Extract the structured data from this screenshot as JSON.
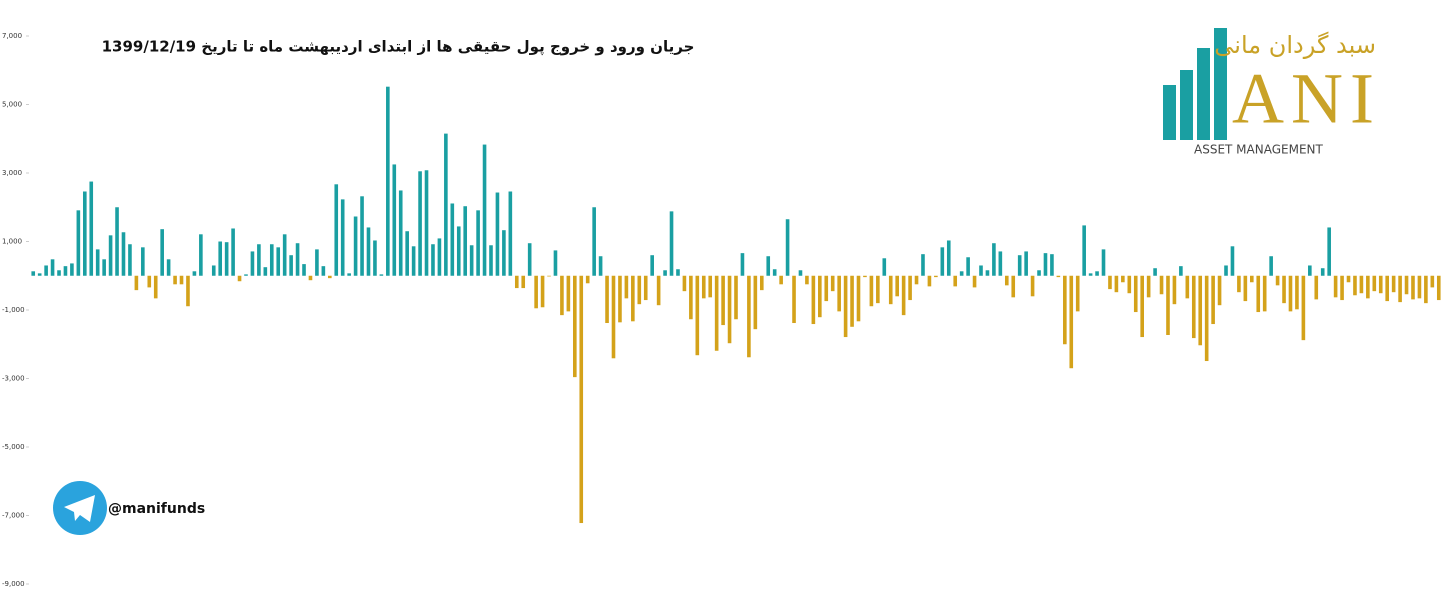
{
  "chart_data": {
    "type": "bar",
    "title": "جریان ورود و خروج پول حقیقی ها از ابتدای اردیبهشت ماه تا تاریخ 1399/12/19",
    "logo": {
      "persian": "سبد گردان مانی",
      "latin": "ANI",
      "tagline": "ASSET MANAGEMENT"
    },
    "channel": "@manifunds",
    "colors": {
      "positive": "#1a9fa2",
      "negative": "#d4a21a"
    },
    "ylim": [
      -9000,
      7000
    ],
    "yticks": [
      {
        "value": -9000,
        "label": "-9,000"
      },
      {
        "value": -7000,
        "label": "-7,000"
      },
      {
        "value": -5000,
        "label": "-5,000"
      },
      {
        "value": -3000,
        "label": "-3,000"
      },
      {
        "value": -1000,
        "label": "-1,000"
      },
      {
        "value": 1000,
        "label": "1,000"
      },
      {
        "value": 3000,
        "label": "3,000"
      },
      {
        "value": 5000,
        "label": "5,000"
      },
      {
        "value": 7000,
        "label": "7,000"
      }
    ],
    "values": [
      130,
      70,
      300,
      480,
      160,
      280,
      360,
      1910,
      2460,
      2750,
      770,
      480,
      1180,
      2000,
      1270,
      920,
      -420,
      830,
      -340,
      -660,
      1360,
      480,
      -250,
      -250,
      -890,
      130,
      1210,
      0,
      300,
      1000,
      980,
      1380,
      -160,
      40,
      710,
      920,
      250,
      920,
      830,
      1210,
      600,
      950,
      340,
      -130,
      770,
      280,
      -70,
      2670,
      2230,
      70,
      1730,
      2320,
      1410,
      1030,
      40,
      5520,
      3250,
      2490,
      1300,
      860,
      3050,
      3080,
      920,
      1090,
      4150,
      2110,
      1440,
      2030,
      890,
      1910,
      3830,
      890,
      2430,
      1330,
      2460,
      -360,
      -360,
      950,
      -950,
      -920,
      -20,
      740,
      -1150,
      -1040,
      -2960,
      -7220,
      -220,
      2000,
      570,
      -1380,
      -2410,
      -1360,
      -660,
      -1330,
      -830,
      -710,
      600,
      -860,
      160,
      1880,
      190,
      -450,
      -1270,
      -2320,
      -660,
      -630,
      -2190,
      -1440,
      -1970,
      -1270,
      660,
      -2380,
      -1560,
      -420,
      570,
      190,
      -250,
      1650,
      -1380,
      160,
      -250,
      -1410,
      -1210,
      -740,
      -450,
      -1040,
      -1790,
      -1490,
      -1330,
      -40,
      -890,
      -800,
      510,
      -830,
      -600,
      -1150,
      -710,
      -250,
      630,
      -310,
      -40,
      830,
      1030,
      -310,
      130,
      540,
      -340,
      300,
      160,
      950,
      710,
      -280,
      -630,
      600,
      710,
      -600,
      160,
      660,
      630,
      -40,
      -2000,
      -2700,
      -1040,
      1470,
      70,
      130,
      770,
      -390,
      -480,
      -190,
      -510,
      -1060,
      -1790,
      -630,
      220,
      -540,
      -1730,
      -830,
      280,
      -660,
      -1820,
      -2030,
      -2490,
      -1410,
      -860,
      300,
      860,
      -480,
      -740,
      -190,
      -1060,
      -1040,
      570,
      -280,
      -800,
      -1040,
      -980,
      -1880,
      300,
      -690,
      220,
      1410,
      -630,
      -710,
      -190,
      -570,
      -510,
      -660,
      -450,
      -510,
      -740,
      -480,
      -770,
      -540,
      -690,
      -660,
      -800,
      -340,
      -710
    ]
  }
}
